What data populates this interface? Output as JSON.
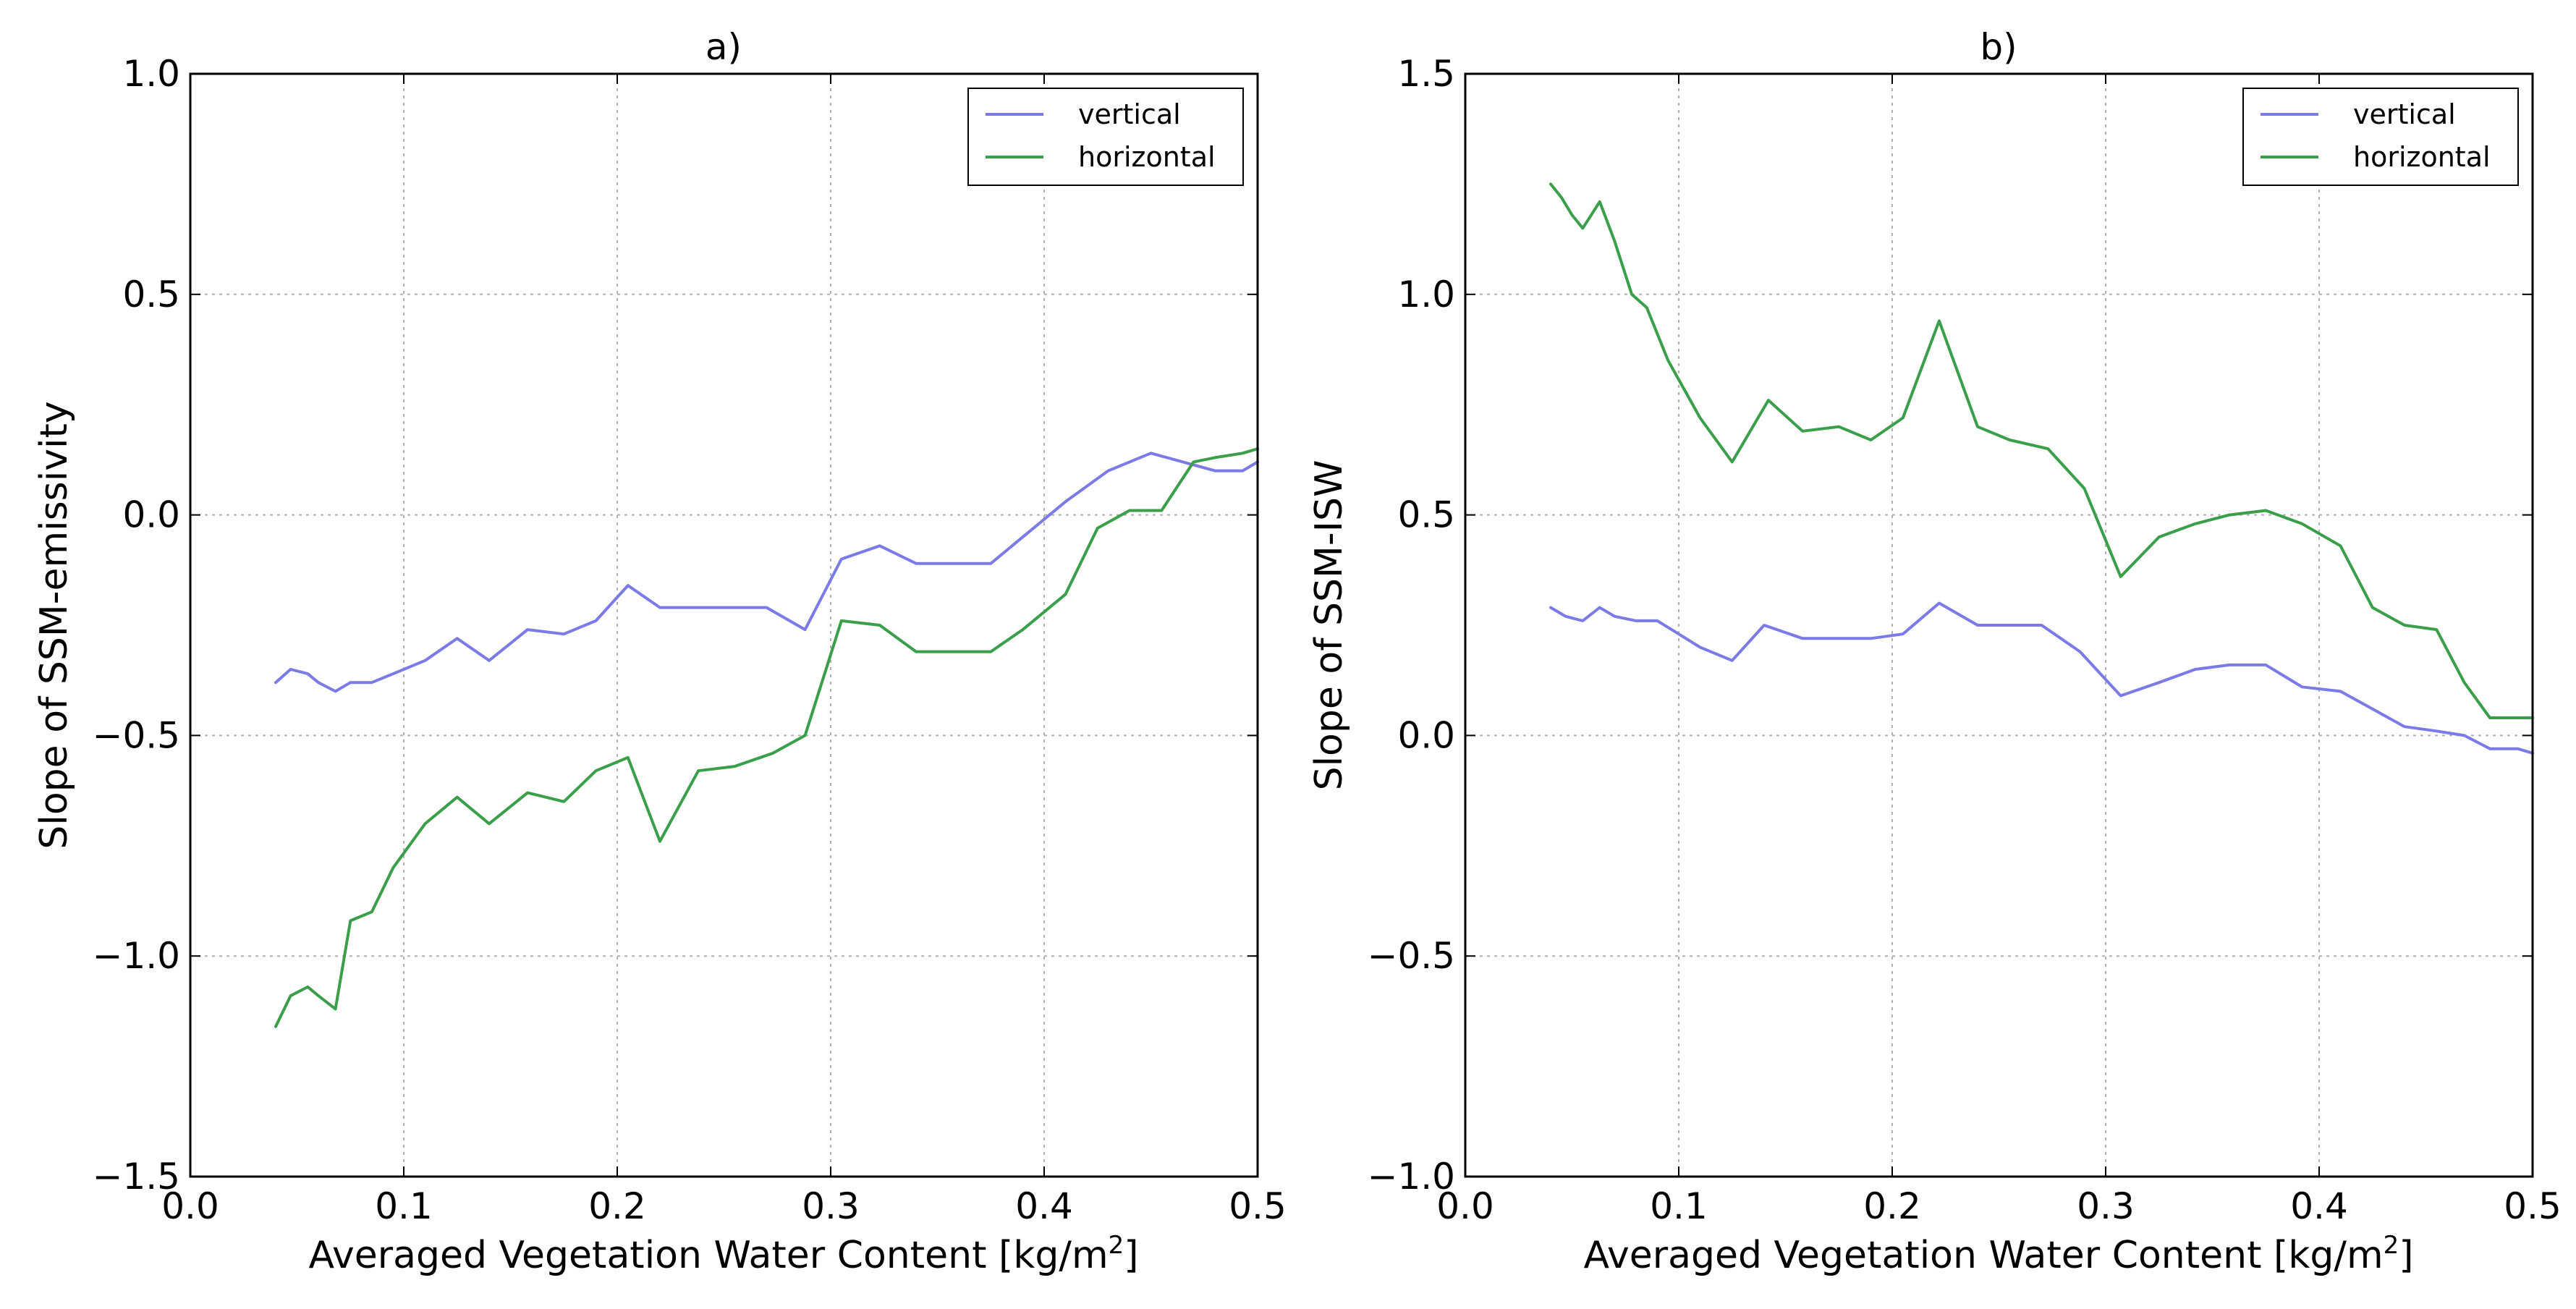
{
  "chart_data": [
    {
      "type": "line",
      "title": "a)",
      "xlabel": "Averaged  Vegetation  Water Content  [kg/m",
      "xlabel_sup": "2",
      "xlabel_end": "]",
      "ylabel": "Slope of SSM-emissivity",
      "xlim": [
        0.0,
        0.5
      ],
      "ylim": [
        -1.5,
        1.0
      ],
      "xticks": [
        0.0,
        0.1,
        0.2,
        0.3,
        0.4,
        0.5
      ],
      "xtick_labels": [
        "0.0",
        "0.1",
        "0.2",
        "0.3",
        "0.4",
        "0.5"
      ],
      "yticks": [
        -1.5,
        -1.0,
        -0.5,
        0.0,
        0.5,
        1.0
      ],
      "ytick_labels": [
        "−1.5",
        "−1.0",
        "−0.5",
        "0.0",
        "0.5",
        "1.0"
      ],
      "grid": true,
      "legend_position": "top-right",
      "series": [
        {
          "name": "vertical",
          "color": "#7b7be8",
          "x": [
            0.04,
            0.047,
            0.055,
            0.06,
            0.068,
            0.075,
            0.085,
            0.095,
            0.11,
            0.125,
            0.14,
            0.158,
            0.175,
            0.19,
            0.205,
            0.22,
            0.24,
            0.27,
            0.288,
            0.305,
            0.323,
            0.34,
            0.357,
            0.375,
            0.39,
            0.41,
            0.43,
            0.45,
            0.465,
            0.48,
            0.493,
            0.5
          ],
          "y": [
            -0.38,
            -0.35,
            -0.36,
            -0.38,
            -0.4,
            -0.38,
            -0.38,
            -0.36,
            -0.33,
            -0.28,
            -0.33,
            -0.26,
            -0.27,
            -0.24,
            -0.16,
            -0.21,
            -0.21,
            -0.21,
            -0.26,
            -0.1,
            -0.07,
            -0.11,
            -0.11,
            -0.11,
            -0.05,
            0.03,
            0.1,
            0.14,
            0.12,
            0.1,
            0.1,
            0.12
          ]
        },
        {
          "name": "horizontal",
          "color": "#3a9e4a",
          "x": [
            0.04,
            0.047,
            0.055,
            0.06,
            0.068,
            0.075,
            0.085,
            0.095,
            0.11,
            0.125,
            0.14,
            0.158,
            0.175,
            0.19,
            0.205,
            0.22,
            0.238,
            0.255,
            0.273,
            0.288,
            0.305,
            0.323,
            0.34,
            0.357,
            0.375,
            0.39,
            0.41,
            0.425,
            0.44,
            0.455,
            0.47,
            0.48,
            0.493,
            0.5
          ],
          "y": [
            -1.16,
            -1.09,
            -1.07,
            -1.09,
            -1.12,
            -0.92,
            -0.9,
            -0.8,
            -0.7,
            -0.64,
            -0.7,
            -0.63,
            -0.65,
            -0.58,
            -0.55,
            -0.74,
            -0.58,
            -0.57,
            -0.54,
            -0.5,
            -0.24,
            -0.25,
            -0.31,
            -0.31,
            -0.31,
            -0.26,
            -0.18,
            -0.03,
            0.01,
            0.01,
            0.12,
            0.13,
            0.14,
            0.15
          ]
        }
      ]
    },
    {
      "type": "line",
      "title": "b)",
      "xlabel": "Averaged  Vegetation  Water Content  [kg/m",
      "xlabel_sup": "2",
      "xlabel_end": "]",
      "ylabel": "Slope of SSM-ISW",
      "xlim": [
        0.0,
        0.5
      ],
      "ylim": [
        -1.0,
        1.5
      ],
      "xticks": [
        0.0,
        0.1,
        0.2,
        0.3,
        0.4,
        0.5
      ],
      "xtick_labels": [
        "0.0",
        "0.1",
        "0.2",
        "0.3",
        "0.4",
        "0.5"
      ],
      "yticks": [
        -1.0,
        -0.5,
        0.0,
        0.5,
        1.0,
        1.5
      ],
      "ytick_labels": [
        "−1.0",
        "−0.5",
        "0.0",
        "0.5",
        "1.0",
        "1.5"
      ],
      "grid": true,
      "legend_position": "top-right",
      "series": [
        {
          "name": "vertical",
          "color": "#7b7be8",
          "x": [
            0.04,
            0.047,
            0.055,
            0.063,
            0.07,
            0.08,
            0.09,
            0.1,
            0.11,
            0.125,
            0.14,
            0.158,
            0.175,
            0.19,
            0.205,
            0.222,
            0.24,
            0.27,
            0.288,
            0.307,
            0.325,
            0.342,
            0.358,
            0.375,
            0.392,
            0.41,
            0.425,
            0.44,
            0.455,
            0.468,
            0.48,
            0.493,
            0.5
          ],
          "y": [
            0.29,
            0.27,
            0.26,
            0.29,
            0.27,
            0.26,
            0.26,
            0.23,
            0.2,
            0.17,
            0.25,
            0.22,
            0.22,
            0.22,
            0.23,
            0.3,
            0.25,
            0.25,
            0.19,
            0.09,
            0.12,
            0.15,
            0.16,
            0.16,
            0.11,
            0.1,
            0.06,
            0.02,
            0.01,
            0.0,
            -0.03,
            -0.03,
            -0.04
          ]
        },
        {
          "name": "horizontal",
          "color": "#3a9e4a",
          "x": [
            0.04,
            0.045,
            0.05,
            0.055,
            0.063,
            0.07,
            0.078,
            0.085,
            0.095,
            0.11,
            0.125,
            0.142,
            0.158,
            0.175,
            0.19,
            0.205,
            0.222,
            0.24,
            0.255,
            0.273,
            0.29,
            0.307,
            0.325,
            0.342,
            0.358,
            0.375,
            0.392,
            0.41,
            0.425,
            0.44,
            0.455,
            0.468,
            0.48,
            0.493,
            0.5
          ],
          "y": [
            1.25,
            1.22,
            1.18,
            1.15,
            1.21,
            1.12,
            1.0,
            0.97,
            0.85,
            0.72,
            0.62,
            0.76,
            0.69,
            0.7,
            0.67,
            0.72,
            0.94,
            0.7,
            0.67,
            0.65,
            0.56,
            0.36,
            0.45,
            0.48,
            0.5,
            0.51,
            0.48,
            0.43,
            0.29,
            0.25,
            0.24,
            0.12,
            0.04,
            0.04,
            0.04
          ]
        }
      ]
    }
  ]
}
